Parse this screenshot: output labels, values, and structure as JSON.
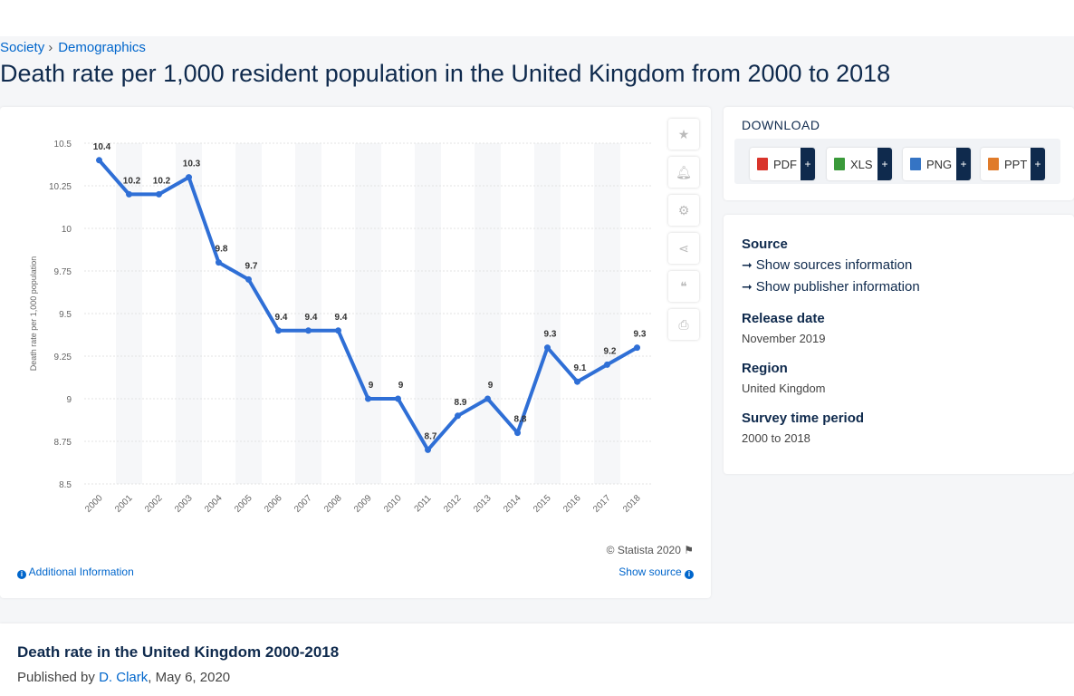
{
  "breadcrumb": {
    "items": [
      "Society",
      "Demographics"
    ]
  },
  "page_title": "Death rate per 1,000 resident population in the United Kingdom from 2000 to 2018",
  "chart_data": {
    "type": "line",
    "x": [
      "2000",
      "2001",
      "2002",
      "2003",
      "2004",
      "2005",
      "2006",
      "2007",
      "2008",
      "2009",
      "2010",
      "2011",
      "2012",
      "2013",
      "2014",
      "2015",
      "2016",
      "2017",
      "2018"
    ],
    "values": [
      10.4,
      10.2,
      10.2,
      10.3,
      9.8,
      9.7,
      9.4,
      9.4,
      9.4,
      9,
      9,
      8.7,
      8.9,
      9,
      8.8,
      9.3,
      9.1,
      9.2,
      9.3
    ],
    "labels": [
      "10.4",
      "10.2",
      "10.2",
      "10.3",
      "9.8",
      "9.7",
      "9.4",
      "9.4",
      "9.4",
      "9",
      "9",
      "8.7",
      "8.9",
      "9",
      "8.8",
      "9.3",
      "9.1",
      "9.2",
      "9.3"
    ],
    "ylabel": "Death rate per 1,000 population",
    "ylim": [
      8.5,
      10.5
    ],
    "yticks": [
      8.5,
      8.75,
      9,
      9.25,
      9.5,
      9.75,
      10,
      10.25,
      10.5
    ],
    "ytick_labels": [
      "8.5",
      "8.75",
      "9",
      "9.25",
      "9.5",
      "9.75",
      "10",
      "10.25",
      "10.5"
    ],
    "line_color": "#2f6fd6",
    "grid": true
  },
  "chart_footer": {
    "copyright": "© Statista 2020",
    "additional_info": "Additional Information",
    "show_source": "Show source"
  },
  "tools": [
    "star-icon",
    "bell-icon",
    "gear-icon",
    "share-icon",
    "quote-icon",
    "print-icon"
  ],
  "download": {
    "title": "DOWNLOAD",
    "buttons": [
      {
        "label": "PDF",
        "color": "#d9342b"
      },
      {
        "label": "XLS",
        "color": "#3a9a3a"
      },
      {
        "label": "PNG",
        "color": "#3574c4"
      },
      {
        "label": "PPT",
        "color": "#e07b2a"
      }
    ],
    "plus": "+"
  },
  "meta": {
    "source_heading": "Source",
    "show_sources": "Show sources information",
    "show_publisher": "Show publisher information",
    "release_heading": "Release date",
    "release_value": "November 2019",
    "region_heading": "Region",
    "region_value": "United Kingdom",
    "survey_heading": "Survey time period",
    "survey_value": "2000 to 2018"
  },
  "bottom": {
    "title": "Death rate in the United Kingdom 2000-2018",
    "published_by": "Published by",
    "author": "D. Clark",
    "date": ", May 6, 2020"
  }
}
